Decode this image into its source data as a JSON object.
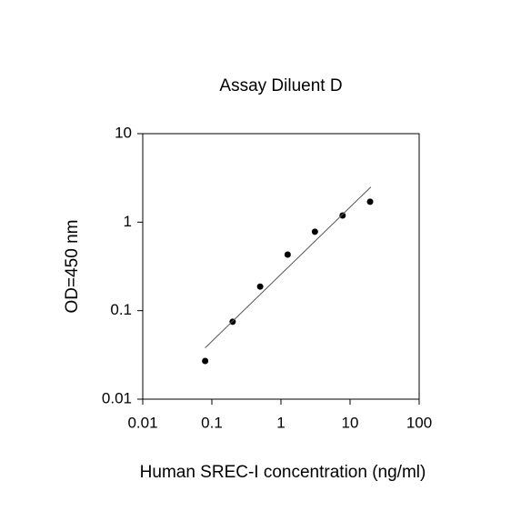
{
  "chart_data": {
    "type": "scatter",
    "title": "Assay Diluent D",
    "xlabel": "Human SREC-I concentration (ng/ml)",
    "ylabel": "OD=450 nm",
    "xscale": "log",
    "yscale": "log",
    "xlim": [
      0.01,
      100
    ],
    "ylim": [
      0.01,
      10
    ],
    "xticks": [
      0.01,
      0.1,
      1,
      10,
      100
    ],
    "yticks": [
      0.01,
      0.1,
      1,
      10
    ],
    "series": [
      {
        "color": "#000000",
        "mode": "markers",
        "x": [
          0.08,
          0.2,
          0.5,
          1.25,
          3.1,
          7.8,
          19.5
        ],
        "values": [
          0.027,
          0.075,
          0.187,
          0.43,
          0.78,
          1.19,
          1.7
        ]
      },
      {
        "color": "#555555",
        "mode": "line",
        "x": [
          0.08,
          20
        ],
        "values": [
          0.038,
          2.5
        ]
      }
    ]
  }
}
